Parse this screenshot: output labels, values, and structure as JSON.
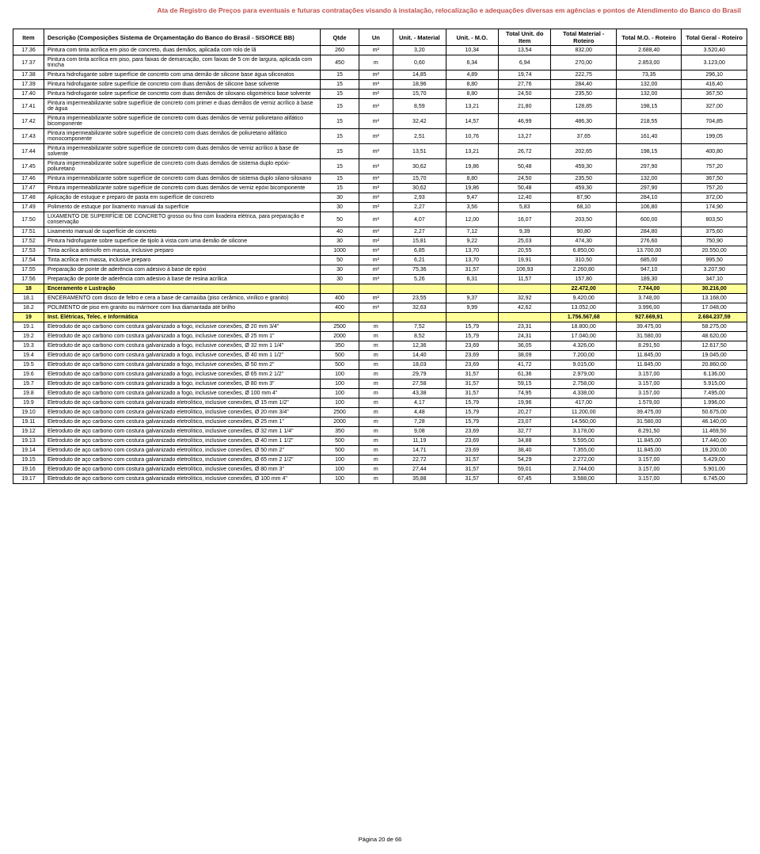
{
  "page_title": "Ata de Registro de Preços para eventuais e futuras contratações visando à instalação, relocalização e adequações diversas em agências e pontos de Atendimento do Banco do Brasil",
  "footer": "Página 20 de 66",
  "headers": {
    "item": "Item",
    "desc": "Descrição (Composições Sistema de Orçamentação do Banco do Brasil - SISORCE BB)",
    "qtde": "Qtde",
    "un": "Un",
    "mat": "Unit. - Material",
    "mo": "Unit. - M.O.",
    "tui": "Total Unit. do Item",
    "tmr": "Total Material - Roteiro",
    "tmo": "Total M.O. - Roteiro",
    "tgr": "Total Geral - Roteiro"
  },
  "rows": [
    {
      "item": "17.36",
      "desc": "Pintura com tinta acrílica em piso de concreto, duas demãos, aplicada com rolo de lã",
      "qtde": "260",
      "un": "m²",
      "mat": "3,20",
      "mo": "10,34",
      "tui": "13,54",
      "tmr": "832,00",
      "tmo": "2.688,40",
      "tgr": "3.520,40"
    },
    {
      "item": "17.37",
      "desc": "Pintura com tinta acrílica em piso, para faixas de demarcação, com faixas de 5 cm de largura, aplicada com trincha",
      "qtde": "450",
      "un": "m",
      "mat": "0,60",
      "mo": "6,34",
      "tui": "6,94",
      "tmr": "270,00",
      "tmo": "2.853,00",
      "tgr": "3.123,00"
    },
    {
      "item": "17.38",
      "desc": "Pintura hidrofugante sobre superfície de concreto com uma demão de silicone base água siliconatos",
      "qtde": "15",
      "un": "m²",
      "mat": "14,85",
      "mo": "4,89",
      "tui": "19,74",
      "tmr": "222,75",
      "tmo": "73,35",
      "tgr": "296,10"
    },
    {
      "item": "17.39",
      "desc": "Pintura hidrofugante sobre superfície de concreto com duas demãos de silicone base solvente",
      "qtde": "15",
      "un": "m²",
      "mat": "18,96",
      "mo": "8,80",
      "tui": "27,76",
      "tmr": "284,40",
      "tmo": "132,00",
      "tgr": "416,40"
    },
    {
      "item": "17.40",
      "desc": "Pintura hidrofugante sobre superfície de concreto com duas demãos de siloxano oligomérico base solvente",
      "qtde": "15",
      "un": "m²",
      "mat": "15,70",
      "mo": "8,80",
      "tui": "24,50",
      "tmr": "235,50",
      "tmo": "132,00",
      "tgr": "367,50"
    },
    {
      "item": "17.41",
      "desc": "Pintura impermeabilizante sobre superfície de concreto com primer e duas demãos de verniz acrílico à base de água",
      "qtde": "15",
      "un": "m²",
      "mat": "8,59",
      "mo": "13,21",
      "tui": "21,80",
      "tmr": "128,85",
      "tmo": "198,15",
      "tgr": "327,00"
    },
    {
      "item": "17.42",
      "desc": "Pintura impermeabilizante sobre superfície de concreto com duas demãos de verniz poliuretano alifático bicomponente",
      "qtde": "15",
      "un": "m²",
      "mat": "32,42",
      "mo": "14,57",
      "tui": "46,99",
      "tmr": "486,30",
      "tmo": "218,55",
      "tgr": "704,85"
    },
    {
      "item": "17.43",
      "desc": "Pintura impermeabilizante sobre superfície de concreto com duas demãos de poliuretano alifático monocomponente",
      "qtde": "15",
      "un": "m²",
      "mat": "2,51",
      "mo": "10,76",
      "tui": "13,27",
      "tmr": "37,65",
      "tmo": "161,40",
      "tgr": "199,05"
    },
    {
      "item": "17.44",
      "desc": "Pintura impermeabilizante sobre superfície de concreto com duas demãos de verniz acrílico à base de solvente",
      "qtde": "15",
      "un": "m²",
      "mat": "13,51",
      "mo": "13,21",
      "tui": "26,72",
      "tmr": "202,65",
      "tmo": "198,15",
      "tgr": "400,80"
    },
    {
      "item": "17.45",
      "desc": "Pintura impermeabilizante sobre superfície de concreto com duas demãos de sistema duplo epóxi-poliuretano",
      "qtde": "15",
      "un": "m²",
      "mat": "30,62",
      "mo": "19,86",
      "tui": "50,48",
      "tmr": "459,30",
      "tmo": "297,90",
      "tgr": "757,20"
    },
    {
      "item": "17.46",
      "desc": "Pintura impermeabilizante sobre superfície de concreto com duas demãos de sistema duplo silano-siloxano",
      "qtde": "15",
      "un": "m²",
      "mat": "15,70",
      "mo": "8,80",
      "tui": "24,50",
      "tmr": "235,50",
      "tmo": "132,00",
      "tgr": "367,50"
    },
    {
      "item": "17.47",
      "desc": "Pintura impermeabilizante sobre superfície de concreto com duas demãos de verniz epóxi bicomponente",
      "qtde": "15",
      "un": "m²",
      "mat": "30,62",
      "mo": "19,86",
      "tui": "50,48",
      "tmr": "459,30",
      "tmo": "297,90",
      "tgr": "757,20"
    },
    {
      "item": "17.48",
      "desc": "Aplicação de estuque e preparo de pasta em superfície de concreto",
      "qtde": "30",
      "un": "m²",
      "mat": "2,93",
      "mo": "9,47",
      "tui": "12,40",
      "tmr": "87,90",
      "tmo": "284,10",
      "tgr": "372,00"
    },
    {
      "item": "17.49",
      "desc": "Polimento de estuque por lixamento manual da superfície",
      "qtde": "30",
      "un": "m²",
      "mat": "2,27",
      "mo": "3,56",
      "tui": "5,83",
      "tmr": "68,10",
      "tmo": "106,80",
      "tgr": "174,90"
    },
    {
      "item": "17.50",
      "desc": "LIXAMENTO DE SUPERFÍCIE DE CONCRETO grosso ou fino com lixadeira elétrica, para preparação e conservação",
      "qtde": "50",
      "un": "m²",
      "mat": "4,07",
      "mo": "12,00",
      "tui": "16,07",
      "tmr": "203,50",
      "tmo": "600,00",
      "tgr": "803,50"
    },
    {
      "item": "17.51",
      "desc": "Lixamento manual de superfície de concreto",
      "qtde": "40",
      "un": "m²",
      "mat": "2,27",
      "mo": "7,12",
      "tui": "9,39",
      "tmr": "90,80",
      "tmo": "284,80",
      "tgr": "375,60"
    },
    {
      "item": "17.52",
      "desc": "Pintura hidrofugante sobre superfície de tijolo à vista com uma demão de silicone",
      "qtde": "30",
      "un": "m²",
      "mat": "15,81",
      "mo": "9,22",
      "tui": "25,03",
      "tmr": "474,30",
      "tmo": "276,60",
      "tgr": "750,90"
    },
    {
      "item": "17.53",
      "desc": "Tinta acrílica antimofo em massa, inclusive preparo",
      "qtde": "1000",
      "un": "m²",
      "mat": "6,85",
      "mo": "13,70",
      "tui": "20,55",
      "tmr": "6.850,00",
      "tmo": "13.700,00",
      "tgr": "20.550,00"
    },
    {
      "item": "17.54",
      "desc": "Tinta acrílica em massa, inclusive preparo",
      "qtde": "50",
      "un": "m²",
      "mat": "6,21",
      "mo": "13,70",
      "tui": "19,91",
      "tmr": "310,50",
      "tmo": "685,00",
      "tgr": "995,50"
    },
    {
      "item": "17.55",
      "desc": "Preparação de ponte de aderência com adesivo à base de epóxi",
      "qtde": "30",
      "un": "m²",
      "mat": "75,36",
      "mo": "31,57",
      "tui": "106,93",
      "tmr": "2.260,80",
      "tmo": "947,10",
      "tgr": "3.207,90"
    },
    {
      "item": "17.56",
      "desc": "Preparação de ponte de aderência com adesivo à base de resina acrílica",
      "qtde": "30",
      "un": "m²",
      "mat": "5,26",
      "mo": "6,31",
      "tui": "11,57",
      "tmr": "157,80",
      "tmo": "189,30",
      "tgr": "347,10"
    },
    {
      "hl": true,
      "item": "18",
      "desc": "Enceramento e Lustração",
      "qtde": "",
      "un": "",
      "mat": "",
      "mo": "",
      "tui": "",
      "tmr": "22.472,00",
      "tmo": "7.744,00",
      "tgr": "30.216,00"
    },
    {
      "item": "18.1",
      "desc": "ENCERAMENTO com disco de feltro e cera a base de carnaúba (piso cerâmico, vinílico e granito)",
      "qtde": "400",
      "un": "m²",
      "mat": "23,55",
      "mo": "9,37",
      "tui": "32,92",
      "tmr": "9.420,00",
      "tmo": "3.748,00",
      "tgr": "13.168,00"
    },
    {
      "item": "18.2",
      "desc": "POLIMENTO de piso em granito ou mármore com lixa diamantada até brilho",
      "qtde": "400",
      "un": "m²",
      "mat": "32,63",
      "mo": "9,99",
      "tui": "42,62",
      "tmr": "13.052,00",
      "tmo": "3.996,00",
      "tgr": "17.048,00"
    },
    {
      "hl": true,
      "item": "19",
      "desc": "Inst. Elétricas, Telec. e Informática",
      "qtde": "",
      "un": "",
      "mat": "",
      "mo": "",
      "tui": "",
      "tmr": "1.756.567,68",
      "tmo": "927.669,91",
      "tgr": "2.684.237,59"
    },
    {
      "item": "19.1",
      "desc": "Eletroduto de aço carbono com costura galvanizado a fogo, inclusive conexões, Ø 20 mm 3/4\"",
      "qtde": "2500",
      "un": "m",
      "mat": "7,52",
      "mo": "15,79",
      "tui": "23,31",
      "tmr": "18.800,00",
      "tmo": "39.475,00",
      "tgr": "58.275,00"
    },
    {
      "item": "19.2",
      "desc": "Eletroduto de aço carbono com costura galvanizado a fogo, inclusive conexões, Ø 25 mm 1\"",
      "qtde": "2000",
      "un": "m",
      "mat": "8,52",
      "mo": "15,79",
      "tui": "24,31",
      "tmr": "17.040,00",
      "tmo": "31.580,00",
      "tgr": "48.620,00"
    },
    {
      "item": "19.3",
      "desc": "Eletroduto de aço carbono com costura galvanizado a fogo, inclusive conexões, Ø 32 mm 1 1/4\"",
      "qtde": "350",
      "un": "m",
      "mat": "12,36",
      "mo": "23,69",
      "tui": "36,05",
      "tmr": "4.326,00",
      "tmo": "8.291,50",
      "tgr": "12.617,50"
    },
    {
      "item": "19.4",
      "desc": "Eletroduto de aço carbono com costura galvanizado a fogo, inclusive conexões, Ø 40 mm 1 1/2\"",
      "qtde": "500",
      "un": "m",
      "mat": "14,40",
      "mo": "23,69",
      "tui": "38,09",
      "tmr": "7.200,00",
      "tmo": "11.845,00",
      "tgr": "19.045,00"
    },
    {
      "item": "19.5",
      "desc": "Eletroduto de aço carbono com costura galvanizado a fogo, inclusive conexões, Ø 50 mm 2\"",
      "qtde": "500",
      "un": "m",
      "mat": "18,03",
      "mo": "23,69",
      "tui": "41,72",
      "tmr": "9.015,00",
      "tmo": "11.845,00",
      "tgr": "20.860,00"
    },
    {
      "item": "19.6",
      "desc": "Eletroduto de aço carbono com costura galvanizado a fogo, inclusive conexões, Ø 65 mm 2 1/2\"",
      "qtde": "100",
      "un": "m",
      "mat": "29,79",
      "mo": "31,57",
      "tui": "61,36",
      "tmr": "2.979,00",
      "tmo": "3.157,00",
      "tgr": "6.136,00"
    },
    {
      "item": "19.7",
      "desc": "Eletroduto de aço carbono com costura galvanizado a fogo, inclusive conexões, Ø 80 mm 3\"",
      "qtde": "100",
      "un": "m",
      "mat": "27,58",
      "mo": "31,57",
      "tui": "59,15",
      "tmr": "2.758,00",
      "tmo": "3.157,00",
      "tgr": "5.915,00"
    },
    {
      "item": "19.8",
      "desc": "Eletroduto de aço carbono com costura galvanizado a fogo, inclusive conexões, Ø 100 mm 4\"",
      "qtde": "100",
      "un": "m",
      "mat": "43,38",
      "mo": "31,57",
      "tui": "74,95",
      "tmr": "4.338,00",
      "tmo": "3.157,00",
      "tgr": "7.495,00"
    },
    {
      "item": "19.9",
      "desc": "Eletroduto de aço carbono com costura galvanizado eletrolítico, inclusive conexões, Ø 15 mm 1/2\"",
      "qtde": "100",
      "un": "m",
      "mat": "4,17",
      "mo": "15,79",
      "tui": "19,96",
      "tmr": "417,00",
      "tmo": "1.579,00",
      "tgr": "1.996,00"
    },
    {
      "item": "19.10",
      "desc": "Eletroduto de aço carbono com costura galvanizado eletrolítico, inclusive conexões, Ø 20 mm 3/4\"",
      "qtde": "2500",
      "un": "m",
      "mat": "4,48",
      "mo": "15,79",
      "tui": "20,27",
      "tmr": "11.200,00",
      "tmo": "39.475,00",
      "tgr": "50.675,00"
    },
    {
      "item": "19.11",
      "desc": "Eletroduto de aço carbono com costura galvanizado eletrolítico, inclusive conexões, Ø 25 mm 1\"",
      "qtde": "2000",
      "un": "m",
      "mat": "7,28",
      "mo": "15,79",
      "tui": "23,07",
      "tmr": "14.560,00",
      "tmo": "31.580,00",
      "tgr": "46.140,00"
    },
    {
      "item": "19.12",
      "desc": "Eletroduto de aço carbono com costura galvanizado eletrolítico, inclusive conexões, Ø 32 mm 1 1/4\"",
      "qtde": "350",
      "un": "m",
      "mat": "9,08",
      "mo": "23,69",
      "tui": "32,77",
      "tmr": "3.178,00",
      "tmo": "8.291,50",
      "tgr": "11.469,50"
    },
    {
      "item": "19.13",
      "desc": "Eletroduto de aço carbono com costura galvanizado eletrolítico, inclusive conexões, Ø 40 mm 1 1/2\"",
      "qtde": "500",
      "un": "m",
      "mat": "11,19",
      "mo": "23,69",
      "tui": "34,88",
      "tmr": "5.595,00",
      "tmo": "11.845,00",
      "tgr": "17.440,00"
    },
    {
      "item": "19.14",
      "desc": "Eletroduto de aço carbono com costura galvanizado eletrolítico, inclusive conexões, Ø 50 mm 2\"",
      "qtde": "500",
      "un": "m",
      "mat": "14,71",
      "mo": "23,69",
      "tui": "38,40",
      "tmr": "7.355,00",
      "tmo": "11.845,00",
      "tgr": "19.200,00"
    },
    {
      "item": "19.15",
      "desc": "Eletroduto de aço carbono com costura galvanizado eletrolítico, inclusive conexões, Ø 65 mm 2 1/2\"",
      "qtde": "100",
      "un": "m",
      "mat": "22,72",
      "mo": "31,57",
      "tui": "54,29",
      "tmr": "2.272,00",
      "tmo": "3.157,00",
      "tgr": "5.429,00"
    },
    {
      "item": "19.16",
      "desc": "Eletroduto de aço carbono com costura galvanizado eletrolítico, inclusive conexões, Ø 80 mm 3\"",
      "qtde": "100",
      "un": "m",
      "mat": "27,44",
      "mo": "31,57",
      "tui": "59,01",
      "tmr": "2.744,00",
      "tmo": "3.157,00",
      "tgr": "5.901,00"
    },
    {
      "item": "19.17",
      "desc": "Eletroduto de aço carbono com costura galvanizado eletrolítico, inclusive conexões, Ø 100 mm 4\"",
      "qtde": "100",
      "un": "m",
      "mat": "35,88",
      "mo": "31,57",
      "tui": "67,45",
      "tmr": "3.588,00",
      "tmo": "3.157,00",
      "tgr": "6.745,00"
    }
  ]
}
